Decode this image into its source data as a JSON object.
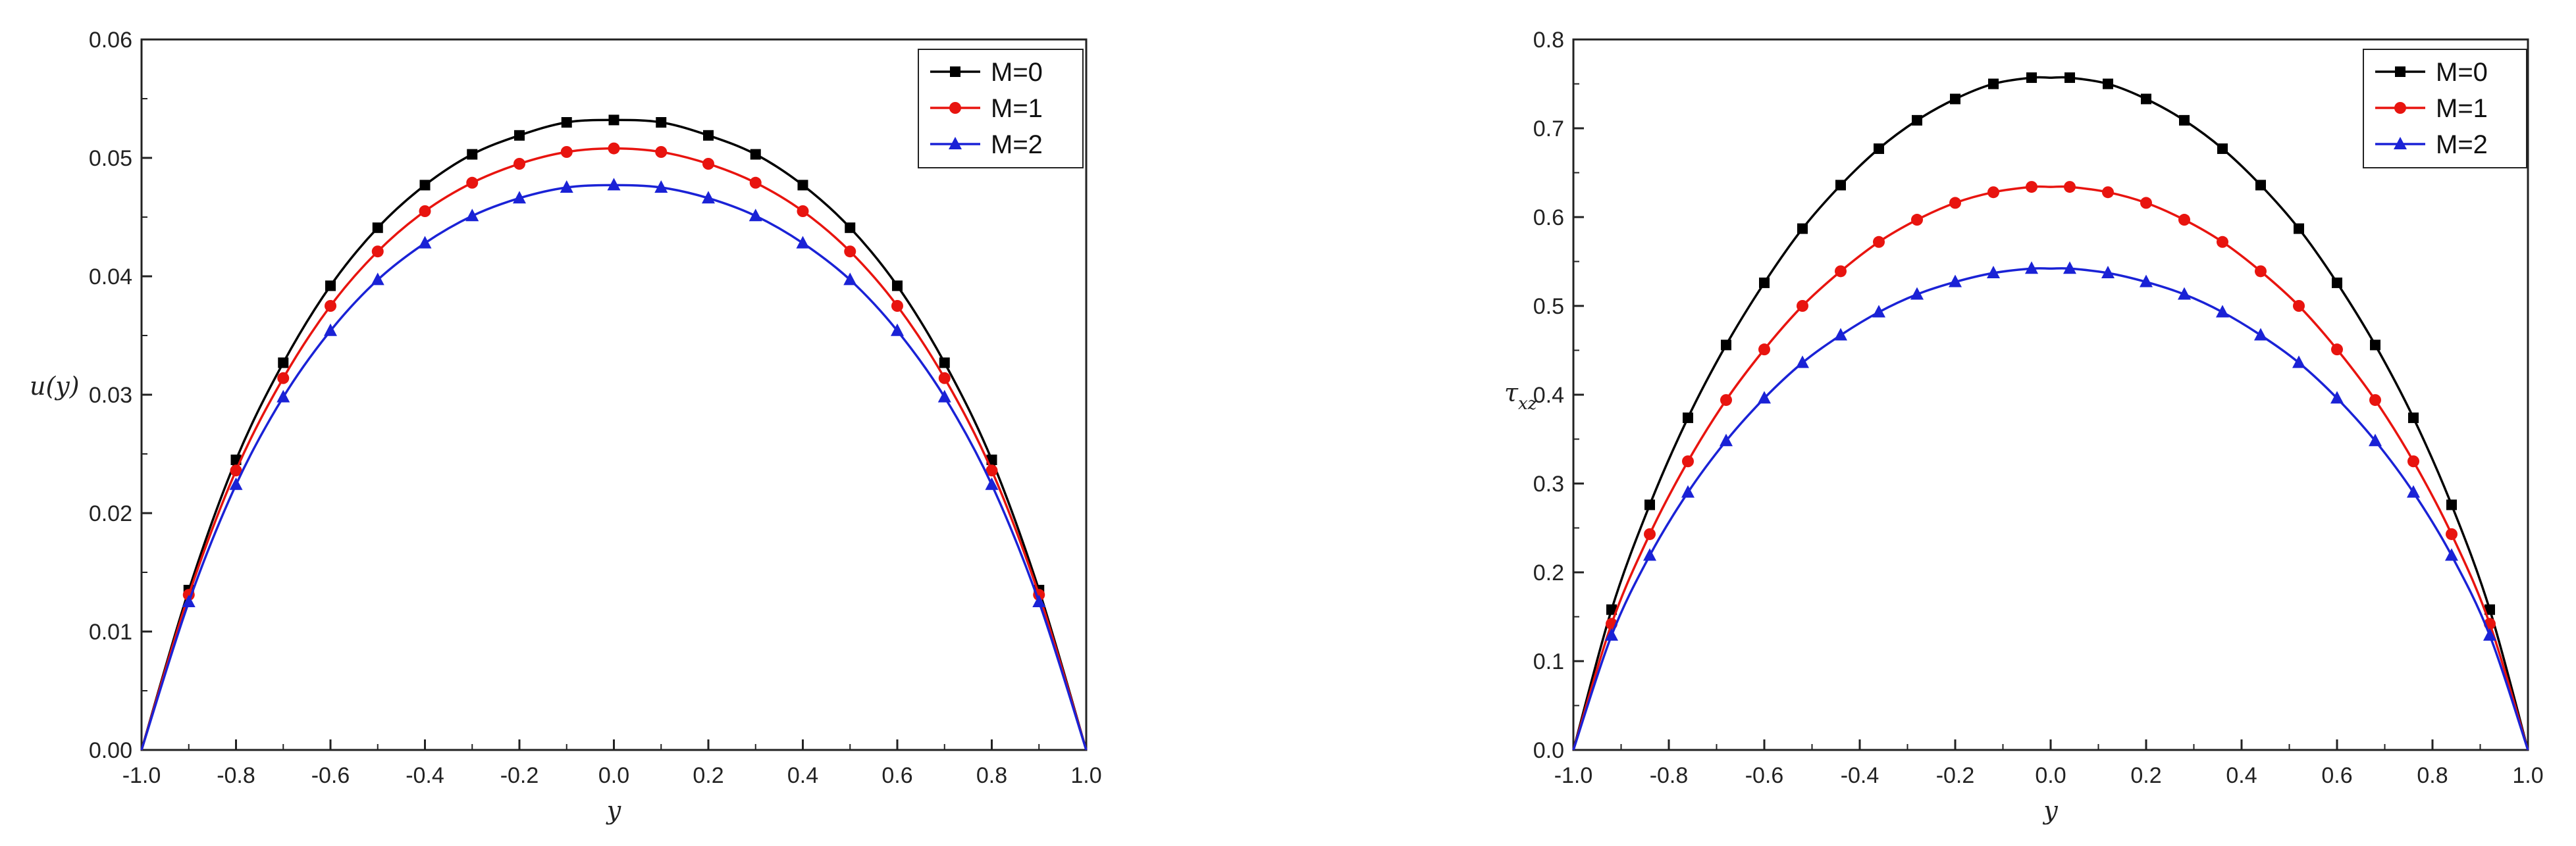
{
  "chart_data": [
    {
      "type": "line",
      "xlabel": "y",
      "ylabel": "u(y)",
      "xlim": [
        -1.0,
        1.0
      ],
      "ylim": [
        0.0,
        0.06
      ],
      "xticks": [
        "-1.0",
        "-0.8",
        "-0.6",
        "-0.4",
        "-0.2",
        "0.0",
        "0.2",
        "0.4",
        "0.6",
        "0.8",
        "1.0"
      ],
      "yticks": [
        "0.00",
        "0.01",
        "0.02",
        "0.03",
        "0.04",
        "0.05",
        "0.06"
      ],
      "legend": "top-right",
      "x": [
        -0.9,
        -0.8,
        -0.7,
        -0.6,
        -0.5,
        -0.4,
        -0.3,
        -0.2,
        -0.1,
        0.0,
        0.1,
        0.2,
        0.3,
        0.4,
        0.5,
        0.6,
        0.7,
        0.8,
        0.9
      ],
      "series": [
        {
          "name": "M=0",
          "color": "#000000",
          "marker": "square",
          "peak": 0.0532,
          "y0": 0.0,
          "values": [
            0.0135,
            0.0245,
            0.0327,
            0.0392,
            0.0441,
            0.0477,
            0.0503,
            0.0519,
            0.053,
            0.0532,
            0.053,
            0.0519,
            0.0503,
            0.0477,
            0.0441,
            0.0392,
            0.0327,
            0.0245,
            0.0135
          ]
        },
        {
          "name": "M=1",
          "color": "#e8140f",
          "marker": "circle",
          "peak": 0.0508,
          "y0": 0.0,
          "values": [
            0.0131,
            0.0236,
            0.0314,
            0.0375,
            0.0421,
            0.0455,
            0.0479,
            0.0495,
            0.0505,
            0.0508,
            0.0505,
            0.0495,
            0.0479,
            0.0455,
            0.0421,
            0.0375,
            0.0314,
            0.0236,
            0.0131
          ]
        },
        {
          "name": "M=2",
          "color": "#1a22d6",
          "marker": "triangle",
          "peak": 0.0477,
          "y0": 0.0,
          "values": [
            0.0125,
            0.0224,
            0.0298,
            0.0354,
            0.0397,
            0.0428,
            0.0451,
            0.0466,
            0.0475,
            0.0477,
            0.0475,
            0.0466,
            0.0451,
            0.0428,
            0.0397,
            0.0354,
            0.0298,
            0.0224,
            0.0125
          ]
        }
      ]
    },
    {
      "type": "line",
      "xlabel": "y",
      "ylabel": "τxz",
      "ylabel_main": "τ",
      "ylabel_sub": "xz",
      "xlim": [
        -1.0,
        1.0
      ],
      "ylim": [
        0.0,
        0.8
      ],
      "xticks": [
        "-1.0",
        "-0.8",
        "-0.6",
        "-0.4",
        "-0.2",
        "0.0",
        "0.2",
        "0.4",
        "0.6",
        "0.8",
        "1.0"
      ],
      "yticks": [
        "0.0",
        "0.1",
        "0.2",
        "0.3",
        "0.4",
        "0.5",
        "0.6",
        "0.7",
        "0.8"
      ],
      "legend": "top-right",
      "x": [
        -0.92,
        -0.84,
        -0.76,
        -0.68,
        -0.6,
        -0.52,
        -0.44,
        -0.36,
        -0.28,
        -0.2,
        -0.12,
        -0.04,
        0.04,
        0.12,
        0.2,
        0.28,
        0.36,
        0.44,
        0.52,
        0.6,
        0.68,
        0.76,
        0.84,
        0.92
      ],
      "series": [
        {
          "name": "M=0",
          "color": "#000000",
          "marker": "square",
          "peak": 0.757,
          "y0": 0.0,
          "values": [
            0.158,
            0.276,
            0.374,
            0.456,
            0.526,
            0.587,
            0.636,
            0.677,
            0.709,
            0.733,
            0.75,
            0.757,
            0.757,
            0.75,
            0.733,
            0.709,
            0.677,
            0.636,
            0.587,
            0.526,
            0.456,
            0.374,
            0.276,
            0.158
          ]
        },
        {
          "name": "M=1",
          "color": "#e8140f",
          "marker": "circle",
          "peak": 0.634,
          "y0": 0.0,
          "values": [
            0.142,
            0.243,
            0.325,
            0.394,
            0.451,
            0.5,
            0.539,
            0.572,
            0.597,
            0.616,
            0.628,
            0.634,
            0.634,
            0.628,
            0.616,
            0.597,
            0.572,
            0.539,
            0.5,
            0.451,
            0.394,
            0.325,
            0.243,
            0.142
          ]
        },
        {
          "name": "M=2",
          "color": "#1a22d6",
          "marker": "triangle",
          "peak": 0.542,
          "y0": 0.0,
          "values": [
            0.129,
            0.219,
            0.29,
            0.348,
            0.396,
            0.436,
            0.467,
            0.493,
            0.513,
            0.527,
            0.537,
            0.542,
            0.542,
            0.537,
            0.527,
            0.513,
            0.493,
            0.467,
            0.436,
            0.396,
            0.348,
            0.29,
            0.219,
            0.129
          ]
        }
      ]
    }
  ]
}
